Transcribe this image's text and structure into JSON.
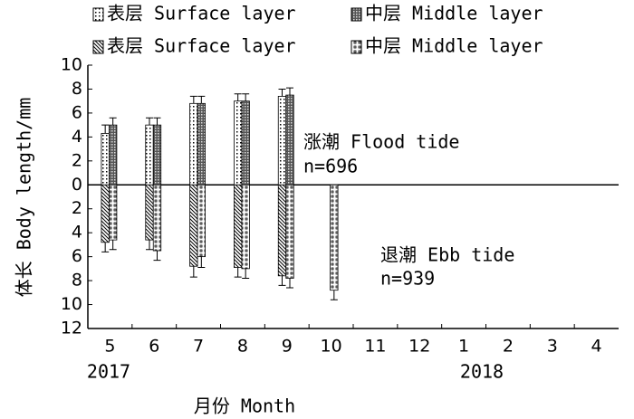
{
  "chart_data": {
    "type": "bar",
    "categories": [
      "5",
      "6",
      "7",
      "8",
      "9",
      "10",
      "11",
      "12",
      "1",
      "2",
      "3",
      "4"
    ],
    "x_label": "月份 Month",
    "y_label": "体长 Body length/mm",
    "years": [
      "2017",
      "2018"
    ],
    "annotations": [
      "涨潮 Flood tide",
      "n=696",
      "退潮 Ebb tide",
      "n=939"
    ],
    "ylim": [
      -12,
      10
    ],
    "yticks": [
      10,
      8,
      6,
      4,
      2,
      0,
      {
        "value": -2,
        "label": "2"
      },
      {
        "value": -4,
        "label": "4"
      },
      {
        "value": -6,
        "label": "6"
      },
      {
        "value": -8,
        "label": "8"
      },
      {
        "value": -10,
        "label": "10"
      },
      {
        "value": -12,
        "label": "12"
      }
    ],
    "series": [
      {
        "name": "表层 Surface layer",
        "color": "#000000",
        "pattern": "dots",
        "values": [
          4.3,
          5.0,
          6.8,
          7.0,
          7.4,
          null,
          null,
          null,
          null,
          null,
          null,
          null
        ],
        "errors": [
          0.7,
          0.6,
          0.6,
          0.6,
          0.6,
          null,
          null,
          null,
          null,
          null,
          null,
          null
        ]
      },
      {
        "name": "中层 Middle layer",
        "color": "#000000",
        "pattern": "checker",
        "values": [
          5.0,
          5.0,
          6.8,
          7.0,
          7.5,
          null,
          null,
          null,
          null,
          null,
          null,
          null
        ],
        "errors": [
          0.6,
          0.6,
          0.6,
          0.6,
          0.6,
          null,
          null,
          null,
          null,
          null,
          null,
          null
        ]
      },
      {
        "name": "表层 Surface layer",
        "color": "#000000",
        "pattern": "hatch",
        "values": [
          -4.8,
          -4.6,
          -6.8,
          -6.9,
          -7.6,
          null,
          null,
          null,
          null,
          null,
          null,
          null
        ],
        "errors": [
          0.8,
          0.8,
          0.9,
          0.8,
          0.8,
          null,
          null,
          null,
          null,
          null,
          null,
          null
        ]
      },
      {
        "name": "中层 Middle layer",
        "color": "#000000",
        "pattern": "squares",
        "values": [
          -4.6,
          -5.5,
          -6.0,
          -7.0,
          -7.8,
          -8.8,
          null,
          null,
          null,
          null,
          null,
          null
        ],
        "errors": [
          0.8,
          0.8,
          0.9,
          0.8,
          0.8,
          0.8,
          null,
          null,
          null,
          null,
          null,
          null
        ]
      }
    ]
  }
}
